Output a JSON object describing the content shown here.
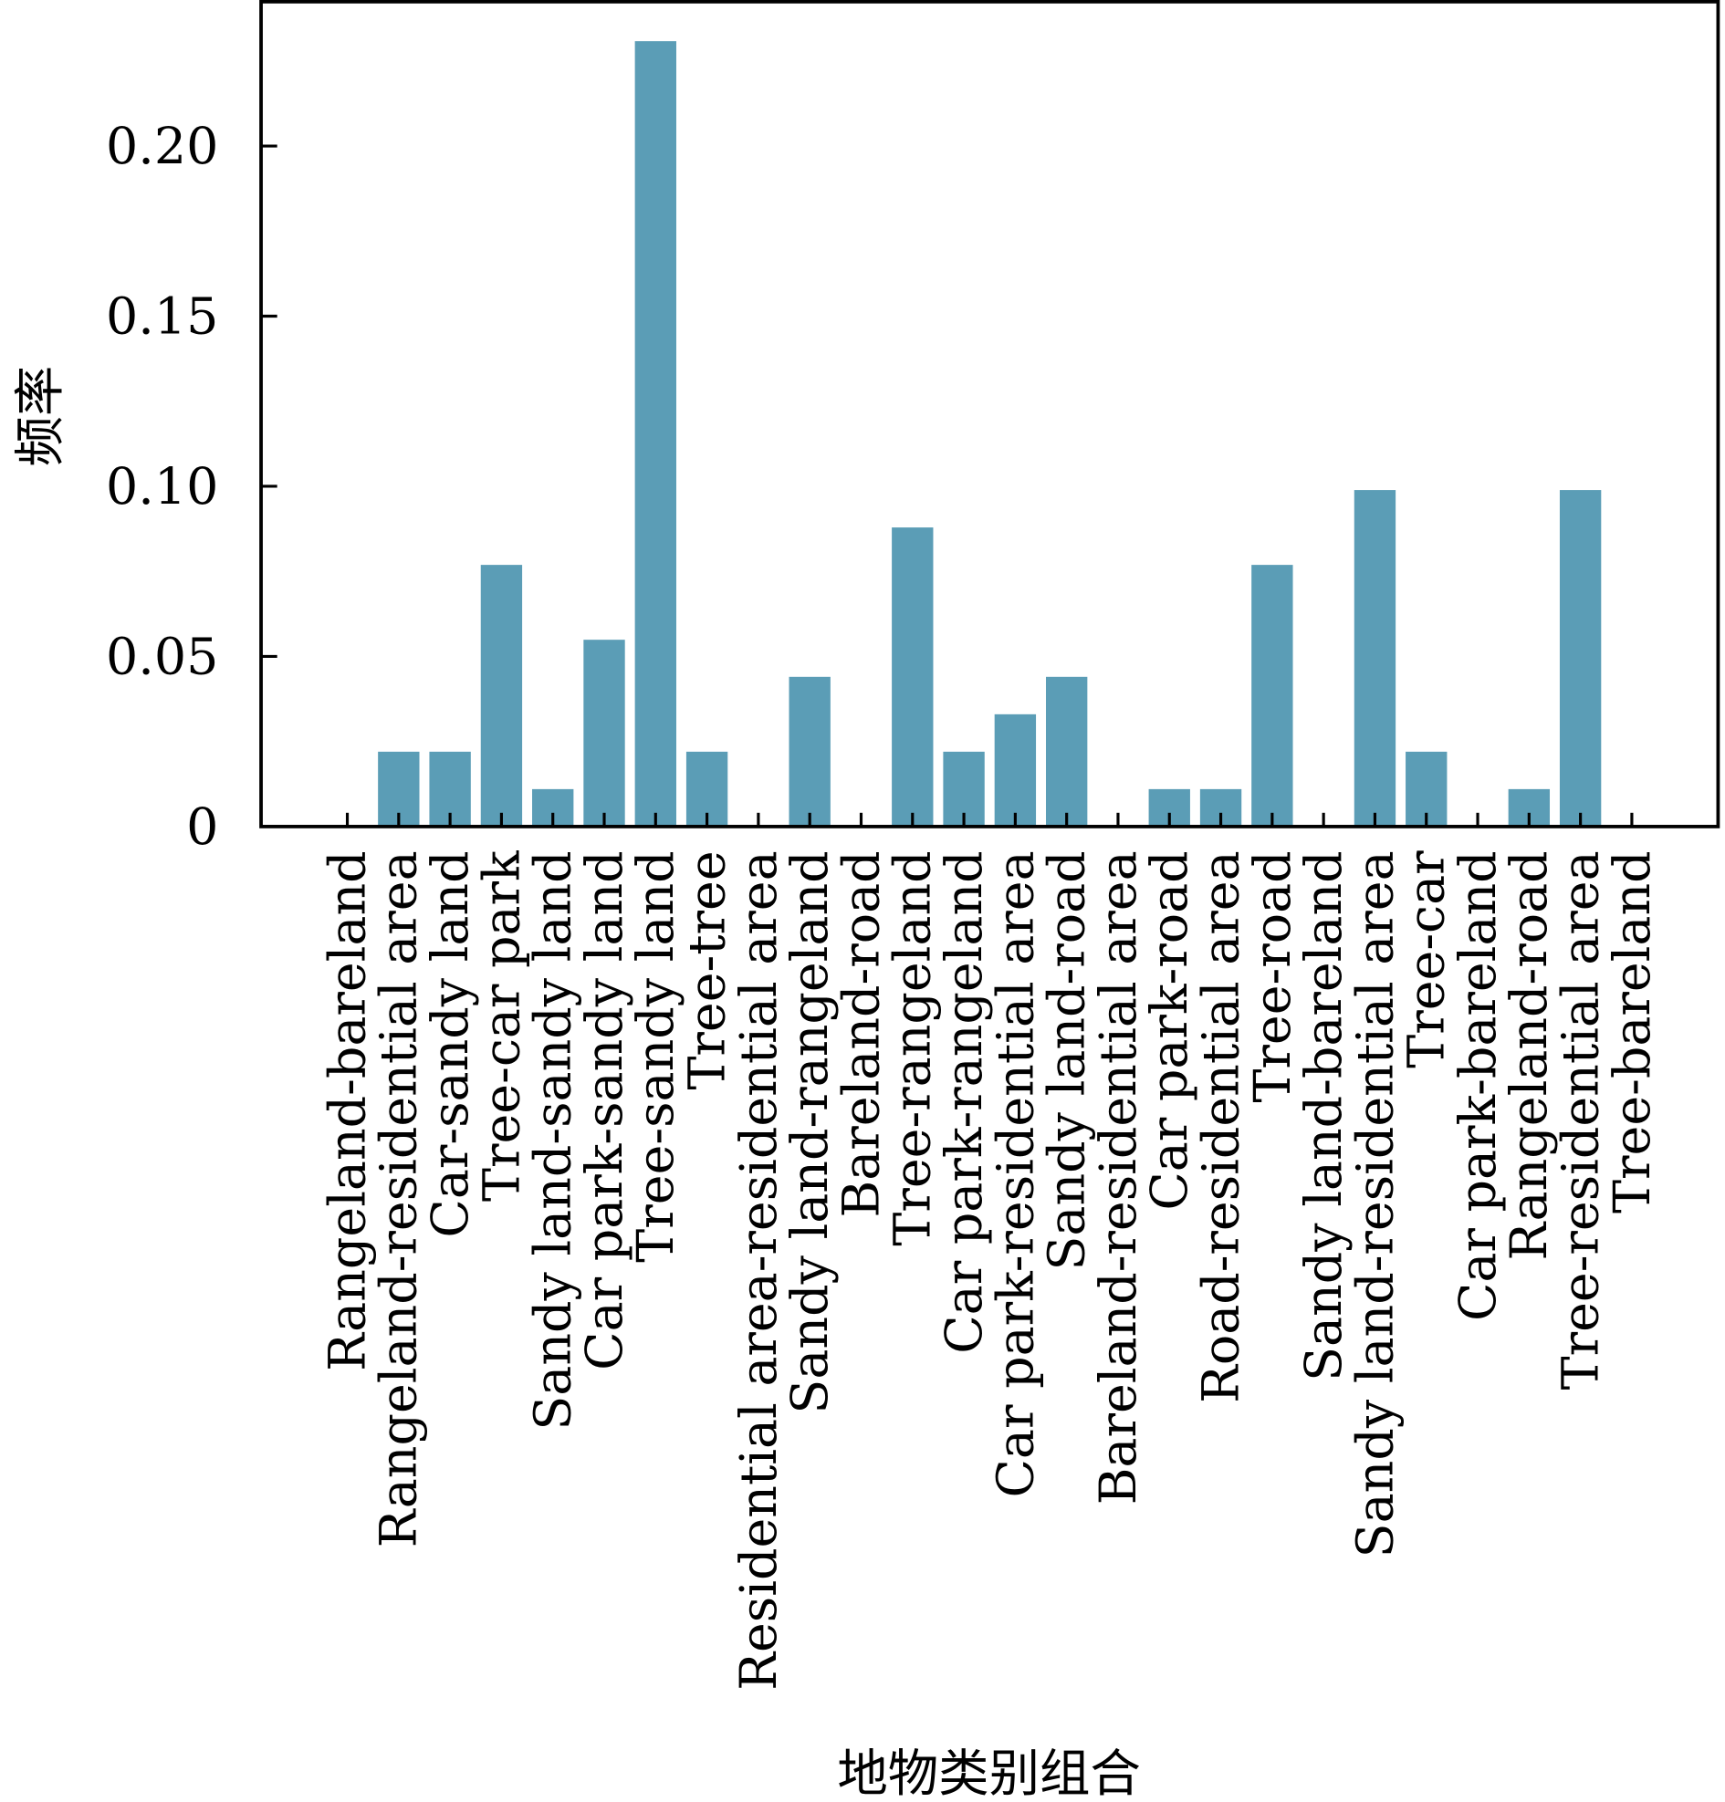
{
  "chart_data": {
    "type": "bar",
    "title": "",
    "xlabel": "地物类别组合",
    "ylabel": "频率",
    "ylim": [
      0,
      0.2425
    ],
    "yticks": [
      0,
      0.05,
      0.1,
      0.15,
      0.2
    ],
    "ytick_labels": [
      "0",
      "0.05",
      "0.10",
      "0.15",
      "0.20"
    ],
    "grid": false,
    "bar_color": "#5b9db6",
    "categories": [
      "Rangeland-bareland",
      "Rangeland-residential area",
      "Car-sandy land",
      "Tree-car park",
      "Sandy land-sandy land",
      "Car park-sandy land",
      "Tree-sandy land",
      "Tree-tree",
      "Residential area-residential area",
      "Sandy land-rangeland",
      "Bareland-road",
      "Tree-rangeland",
      "Car park-rangeland",
      "Car park-residential area",
      "Sandy land-road",
      "Bareland-residential area",
      "Car park-road",
      "Road-residential area",
      "Tree-road",
      "Sandy land-bareland",
      "Sandy land-residential area",
      "Tree-car",
      "Car park-bareland",
      "Rangeland-road",
      "Tree-residential area",
      "Tree-bareland"
    ],
    "values": [
      0,
      0.022,
      0.022,
      0.0769,
      0.011,
      0.0549,
      0.2308,
      0.022,
      0,
      0.044,
      0,
      0.0879,
      0.022,
      0.033,
      0.044,
      0,
      0.011,
      0.011,
      0.0769,
      0,
      0.0989,
      0.022,
      0,
      0.011,
      0.0989,
      0
    ]
  }
}
